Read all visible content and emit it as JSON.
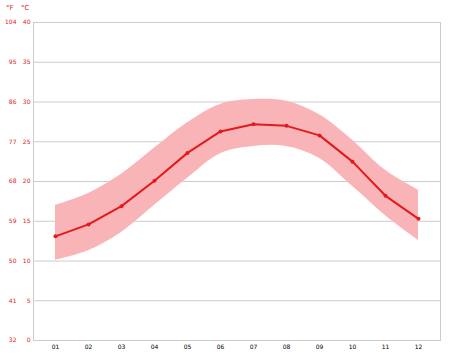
{
  "chart_data": {
    "type": "line",
    "categories": [
      "01",
      "02",
      "03",
      "04",
      "05",
      "06",
      "07",
      "08",
      "09",
      "10",
      "11",
      "12"
    ],
    "values": [
      13.1,
      14.6,
      16.9,
      20.1,
      23.6,
      26.3,
      27.2,
      27.0,
      25.8,
      22.5,
      18.2,
      15.3
    ],
    "min_values": [
      10.1,
      11.3,
      13.6,
      17.0,
      20.4,
      23.5,
      24.4,
      24.4,
      22.9,
      19.4,
      15.7,
      12.6
    ],
    "max_values": [
      17.0,
      18.5,
      20.9,
      24.2,
      27.4,
      29.7,
      30.3,
      30.1,
      28.4,
      25.2,
      21.4,
      18.9
    ],
    "color": "#e31a1c",
    "band_color": "#f9b4b8",
    "y_label": "°C",
    "ylim": [
      0,
      40
    ],
    "yticks": [
      0,
      5,
      10,
      15,
      20,
      25,
      30,
      35,
      40
    ],
    "y2_label": "°F",
    "y2lim": [
      32,
      104
    ],
    "y2ticks": [
      32,
      41,
      50,
      59,
      68,
      77,
      86,
      95,
      104
    ],
    "marker": "circle",
    "grid": true
  }
}
